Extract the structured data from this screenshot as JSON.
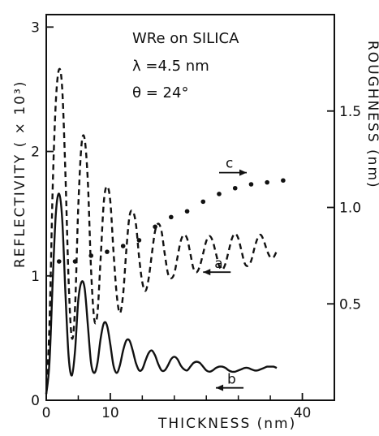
{
  "chart_data": {
    "type": "line",
    "xlabel": "THICKNESS  (nm)",
    "ylabel_left": "REFLECTIVITY  ( × 10³)",
    "ylabel_right": "ROUGHNESS  (nm)",
    "xlim": [
      0,
      45
    ],
    "ylim_left": [
      0,
      3.1
    ],
    "ylim_right": [
      0,
      2.0
    ],
    "x_ticks": [
      0,
      10,
      40
    ],
    "x_minor_ticks": [
      5,
      15,
      20,
      25,
      30,
      35
    ],
    "y_left_ticks": [
      0,
      1,
      2,
      3
    ],
    "y_right_ticks": [
      0.5,
      1.0,
      1.5
    ],
    "annotations": [
      "WRe  on  SILICA",
      "λ =4.5 nm",
      "θ = 24°"
    ],
    "series": [
      {
        "name": "a",
        "style": "dashed",
        "axis": "left",
        "x": [
          0,
          0.5,
          1,
          1.5,
          2,
          2.5,
          3,
          3.5,
          4,
          4.5,
          5,
          5.5,
          6,
          6.5,
          7,
          7.5,
          8,
          8.5,
          9,
          9.5,
          10,
          10.5,
          11,
          11.5,
          12,
          12.5,
          13,
          13.5,
          14,
          14.5,
          15,
          15.5,
          16,
          16.5,
          17,
          17.5,
          18,
          18.5,
          19,
          19.5,
          20,
          20.5,
          21,
          21.5,
          22,
          22.5,
          23,
          23.5,
          24,
          24.5,
          25,
          25.5,
          26,
          26.5,
          27,
          27.5,
          28,
          28.5,
          29,
          29.5,
          30,
          30.5,
          31,
          31.5,
          32,
          32.5,
          33,
          33.5,
          34,
          34.5,
          35,
          35.5,
          36
        ],
        "values": [
          0.05,
          0.6,
          1.7,
          2.4,
          2.66,
          2.5,
          1.8,
          0.95,
          0.5,
          0.75,
          1.55,
          2.05,
          2.1,
          1.75,
          1.05,
          0.65,
          0.7,
          1.15,
          1.6,
          1.72,
          1.6,
          1.2,
          0.85,
          0.7,
          0.85,
          1.2,
          1.48,
          1.52,
          1.42,
          1.15,
          0.95,
          0.88,
          0.98,
          1.18,
          1.36,
          1.42,
          1.36,
          1.18,
          1.02,
          0.98,
          1.02,
          1.15,
          1.28,
          1.33,
          1.3,
          1.18,
          1.06,
          1.03,
          1.08,
          1.18,
          1.28,
          1.32,
          1.28,
          1.18,
          1.08,
          1.05,
          1.1,
          1.2,
          1.3,
          1.34,
          1.3,
          1.2,
          1.1,
          1.08,
          1.12,
          1.22,
          1.3,
          1.33,
          1.28,
          1.2,
          1.15,
          1.15,
          1.2
        ]
      },
      {
        "name": "b",
        "style": "solid",
        "axis": "left",
        "x": [
          0,
          0.5,
          1,
          1.5,
          2,
          2.5,
          3,
          3.5,
          4,
          4.5,
          5,
          5.5,
          6,
          6.5,
          7,
          7.5,
          8,
          8.5,
          9,
          9.5,
          10,
          10.5,
          11,
          11.5,
          12,
          12.5,
          13,
          13.5,
          14,
          14.5,
          15,
          15.5,
          16,
          16.5,
          17,
          17.5,
          18,
          18.5,
          19,
          19.5,
          20,
          20.5,
          21,
          21.5,
          22,
          22.5,
          23,
          23.5,
          24,
          24.5,
          25,
          25.5,
          26,
          26.5,
          27,
          27.5,
          28,
          28.5,
          29,
          29.5,
          30,
          30.5,
          31,
          31.5,
          32,
          32.5,
          33,
          33.5,
          34,
          34.5,
          35,
          35.5,
          36
        ],
        "values": [
          0.05,
          0.3,
          0.95,
          1.5,
          1.66,
          1.45,
          0.85,
          0.35,
          0.2,
          0.4,
          0.8,
          0.95,
          0.9,
          0.6,
          0.3,
          0.22,
          0.3,
          0.5,
          0.62,
          0.6,
          0.45,
          0.28,
          0.22,
          0.28,
          0.4,
          0.48,
          0.48,
          0.4,
          0.3,
          0.24,
          0.25,
          0.32,
          0.38,
          0.4,
          0.36,
          0.29,
          0.24,
          0.24,
          0.28,
          0.33,
          0.35,
          0.33,
          0.28,
          0.25,
          0.24,
          0.27,
          0.3,
          0.31,
          0.3,
          0.27,
          0.24,
          0.23,
          0.24,
          0.26,
          0.27,
          0.27,
          0.26,
          0.24,
          0.23,
          0.23,
          0.24,
          0.25,
          0.26,
          0.26,
          0.25,
          0.24,
          0.24,
          0.25,
          0.26,
          0.27,
          0.27,
          0.27,
          0.26
        ]
      },
      {
        "name": "c",
        "style": "dotted-markers",
        "axis": "right",
        "x": [
          2,
          4.5,
          7,
          9.5,
          12,
          14.5,
          17,
          19.5,
          22,
          24.5,
          27,
          29.5,
          32,
          34.5,
          37
        ],
        "values": [
          0.72,
          0.72,
          0.75,
          0.77,
          0.8,
          0.83,
          0.9,
          0.95,
          0.98,
          1.03,
          1.07,
          1.1,
          1.12,
          1.13,
          1.14
        ]
      }
    ],
    "curve_labels": [
      {
        "label": "a",
        "x": 24.5,
        "y_left": 1.03,
        "arrow": "left"
      },
      {
        "label": "b",
        "x": 26.5,
        "y_left": 0.1,
        "arrow": "left"
      },
      {
        "label": "c",
        "x": 27,
        "y_left": 1.83,
        "arrow": "right"
      }
    ],
    "grid": false
  }
}
